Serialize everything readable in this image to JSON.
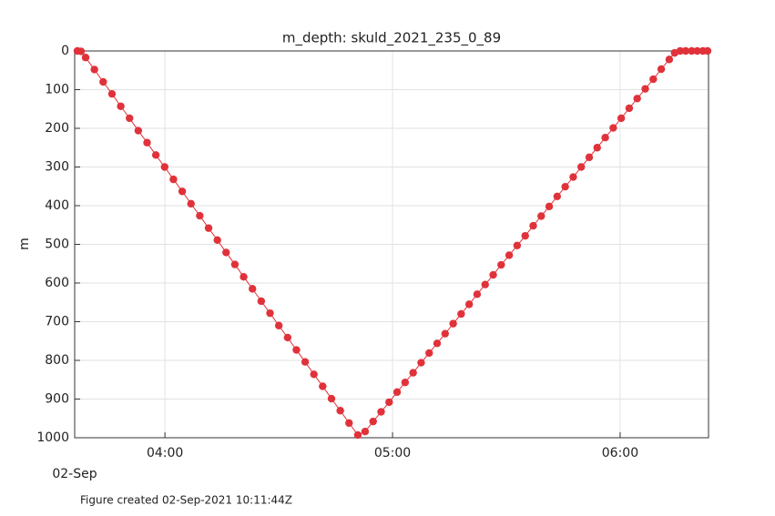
{
  "chart_data": {
    "type": "line",
    "title": "m_depth: skuld_2021_235_0_89",
    "y_label": "m",
    "x_date_label": "02-Sep",
    "footer": "Figure created 02-Sep-2021 10:11:44Z",
    "color": "#e0323a",
    "marker": "circle",
    "grid": true,
    "y_reversed": true,
    "xlim": [
      "03:36:12",
      "06:23:18"
    ],
    "xticks": [
      "04:00",
      "05:00",
      "06:00"
    ],
    "ylim": [
      0,
      1000
    ],
    "yticks": [
      0,
      100,
      200,
      300,
      400,
      500,
      600,
      700,
      800,
      900,
      1000
    ],
    "x": [
      "03:36:55",
      "03:37:53",
      "03:39:05",
      "03:41:24",
      "03:43:43",
      "03:46:02",
      "03:48:21",
      "03:50:40",
      "03:52:58",
      "03:55:17",
      "03:57:36",
      "03:59:55",
      "04:02:14",
      "04:04:33",
      "04:06:52",
      "04:09:11",
      "04:11:30",
      "04:13:49",
      "04:16:07",
      "04:18:26",
      "04:20:45",
      "04:23:04",
      "04:25:23",
      "04:27:42",
      "04:30:01",
      "04:32:20",
      "04:34:39",
      "04:36:58",
      "04:39:16",
      "04:41:35",
      "04:43:54",
      "04:46:13",
      "04:48:32",
      "04:50:51",
      "04:52:46",
      "04:54:53",
      "04:56:59",
      "04:59:06",
      "05:01:12",
      "05:03:19",
      "05:05:26",
      "05:07:32",
      "05:09:39",
      "05:11:45",
      "05:13:52",
      "05:15:59",
      "05:18:05",
      "05:20:12",
      "05:22:18",
      "05:24:25",
      "05:26:32",
      "05:28:38",
      "05:30:45",
      "05:32:51",
      "05:34:58",
      "05:37:05",
      "05:39:11",
      "05:41:18",
      "05:43:24",
      "05:45:31",
      "05:47:38",
      "05:49:44",
      "05:51:51",
      "05:53:57",
      "05:56:04",
      "05:58:11",
      "06:00:17",
      "06:02:24",
      "06:04:30",
      "06:06:37",
      "06:08:44",
      "06:10:50",
      "06:12:57",
      "06:14:22",
      "06:15:50",
      "06:17:17",
      "06:18:53",
      "06:20:20",
      "06:21:50",
      "06:23:03"
    ],
    "values": [
      0,
      1,
      17,
      48,
      80,
      111,
      143,
      174,
      206,
      237,
      269,
      300,
      332,
      363,
      395,
      426,
      458,
      489,
      521,
      552,
      584,
      615,
      647,
      678,
      710,
      741,
      773,
      804,
      836,
      867,
      899,
      930,
      962,
      993,
      984,
      958,
      933,
      908,
      882,
      857,
      832,
      806,
      781,
      756,
      731,
      705,
      680,
      655,
      629,
      604,
      579,
      553,
      528,
      503,
      478,
      452,
      427,
      402,
      376,
      351,
      326,
      300,
      275,
      250,
      224,
      199,
      174,
      148,
      123,
      98,
      73,
      47,
      22,
      5,
      0,
      0,
      0,
      0,
      0,
      0
    ]
  }
}
